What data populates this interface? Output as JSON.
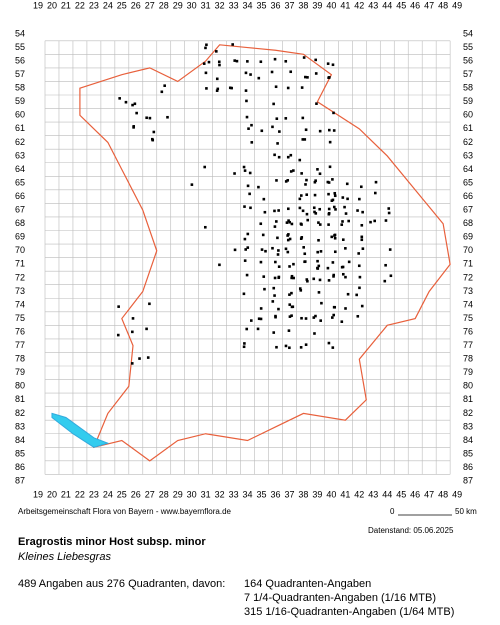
{
  "map": {
    "columns": [
      19,
      20,
      21,
      22,
      23,
      24,
      25,
      26,
      27,
      28,
      29,
      30,
      31,
      32,
      33,
      34,
      35,
      36,
      37,
      38,
      39,
      40,
      41,
      42,
      43,
      44,
      45,
      46,
      47,
      48,
      49
    ],
    "rows": [
      54,
      55,
      56,
      57,
      58,
      59,
      60,
      61,
      62,
      63,
      64,
      65,
      66,
      67,
      68,
      69,
      70,
      71,
      72,
      73,
      74,
      75,
      76,
      77,
      78,
      79,
      80,
      81,
      82,
      83,
      84,
      85,
      86,
      87
    ]
  },
  "footer": {
    "credit": "Arbeitsgemeinschaft Flora von Bayern - www.bayernflora.de",
    "scale_start": "0",
    "scale_end": "50 km",
    "date": "Datenstand: 05.06.2025",
    "title": "Eragrostis minor Host subsp. minor",
    "subtitle": "Kleines Liebesgras",
    "summary": "489 Angaben aus 276 Quadranten, davon:",
    "counts": [
      "164 Quadranten-Angaben",
      "7 1/4-Quadranten-Angaben (1/16 MTB)",
      "315 1/16-Quadranten-Angaben (1/64 MTB)"
    ]
  }
}
